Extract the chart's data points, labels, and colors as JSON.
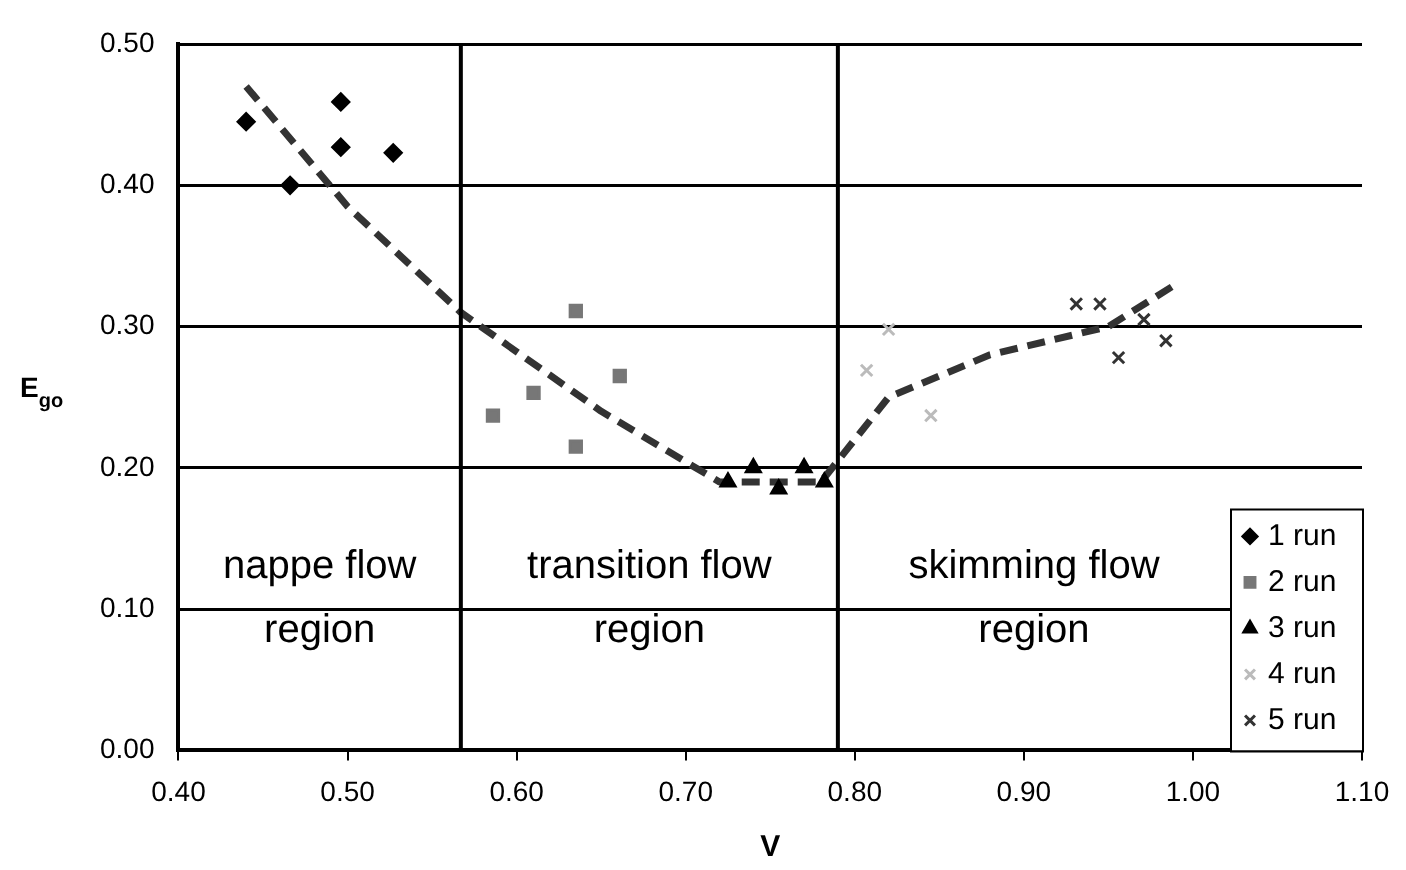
{
  "chart_data": {
    "type": "scatter",
    "xlabel": "V",
    "ylabel": "E$_{go}$",
    "xlim": [
      0.4,
      1.1
    ],
    "ylim": [
      0,
      0.5
    ],
    "xticks": [
      {
        "value": 0.4,
        "label": "0.40"
      },
      {
        "value": 0.5,
        "label": "0.50"
      },
      {
        "value": 0.6,
        "label": "0.60"
      },
      {
        "value": 0.7,
        "label": "0.70"
      },
      {
        "value": 0.8,
        "label": "0.80"
      },
      {
        "value": 0.9,
        "label": "0.90"
      },
      {
        "value": 1.0,
        "label": "1.00"
      },
      {
        "value": 1.1,
        "label": "1.10"
      }
    ],
    "yticks": [
      {
        "value": 0,
        "label": "0.00"
      },
      {
        "value": 0.1,
        "label": "0.10"
      },
      {
        "value": 0.2,
        "label": "0.20"
      },
      {
        "value": 0.3,
        "label": "0.30"
      },
      {
        "value": 0.4,
        "label": "0.40"
      },
      {
        "value": 0.5,
        "label": "0.50"
      }
    ],
    "grid": "y",
    "legend": "bottom right",
    "ref_lines": [
      {
        "axis": "x",
        "value": 0.567,
        "color": "#000000"
      },
      {
        "axis": "x",
        "value": 0.79,
        "color": "#000000"
      }
    ],
    "annotations": [
      "nappe flow region",
      "transition flow region",
      "skimming flow region"
    ],
    "series": [
      {
        "name": "1 run",
        "color": "#000000",
        "marker": "diamond",
        "x": [
          0.44,
          0.466,
          0.496,
          0.496,
          0.527
        ],
        "values": [
          0.445,
          0.4,
          0.459,
          0.427,
          0.423
        ]
      },
      {
        "name": "2 run",
        "color": "#777777",
        "marker": "square",
        "x": [
          0.586,
          0.61,
          0.635,
          0.635,
          0.661
        ],
        "values": [
          0.237,
          0.253,
          0.311,
          0.215,
          0.265
        ]
      },
      {
        "name": "3 run",
        "color": "#000000",
        "marker": "triangle",
        "x": [
          0.725,
          0.74,
          0.755,
          0.77,
          0.782
        ],
        "values": [
          0.19,
          0.2,
          0.185,
          0.2,
          0.19
        ]
      },
      {
        "name": "4 run",
        "color": "#bbbbbb",
        "marker": "cross",
        "x": [
          0.807,
          0.82,
          0.845
        ],
        "values": [
          0.269,
          0.298,
          0.237
        ]
      },
      {
        "name": "5 run",
        "color": "#333333",
        "marker": "cross",
        "x": [
          0.931,
          0.945,
          0.956,
          0.971,
          0.984
        ],
        "values": [
          0.316,
          0.316,
          0.278,
          0.305,
          0.29
        ]
      },
      {
        "type": "line",
        "color": "#333333",
        "marker": "none",
        "line_style": "dashed",
        "x": [
          0.44,
          0.5,
          0.567,
          0.65,
          0.72,
          0.78,
          0.82,
          0.88,
          0.95,
          0.99
        ],
        "values": [
          0.47,
          0.385,
          0.31,
          0.24,
          0.19,
          0.19,
          0.25,
          0.28,
          0.3,
          0.33
        ]
      }
    ]
  }
}
